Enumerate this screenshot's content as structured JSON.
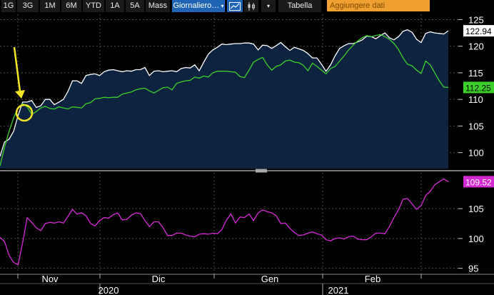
{
  "toolbar": {
    "range_buttons": [
      "1G",
      "3G",
      "1M",
      "6M",
      "YTD",
      "1A",
      "5A",
      "Mass"
    ],
    "period_select": "Giornaliero",
    "chart_type_icons": [
      "line-chart-icon",
      "candlestick-icon"
    ],
    "dropdown_icon": "chevron-down-icon",
    "table_button": "Tabella",
    "add_data_placeholder": "Aggiungere dati"
  },
  "colors": {
    "background": "#000000",
    "area_fill": "#0d2340",
    "series_white": "#ffffff",
    "series_green": "#3cd02a",
    "series_magenta": "#d42ad4",
    "grid": "#4a4a4a",
    "annotation": "#f5e625",
    "active_button": "#1f64b4",
    "input_orange": "#f0a030"
  },
  "chart_data": [
    {
      "type": "area",
      "panel": "upper",
      "ylim": [
        97,
        126
      ],
      "y_ticks": [
        100,
        105,
        110,
        115,
        120,
        125
      ],
      "grid": true,
      "series": [
        {
          "color": "white",
          "last_label": "122.94",
          "values": [
            99.3,
            102,
            102.5,
            104,
            107,
            109.5,
            109.5,
            109.8,
            108.5,
            108.8,
            110,
            110,
            109,
            109.5,
            110,
            111.5,
            113.5,
            113.5,
            113,
            114.5,
            114.7,
            114.8,
            114.5,
            115.2,
            115.5,
            115.6,
            115.4,
            115.2,
            115.4,
            115.3,
            115.6,
            115.6,
            116,
            114.5,
            115.3,
            115.4,
            115.2,
            115.3,
            115.4,
            115.2,
            115.8,
            116,
            115.9,
            116.5,
            115.4,
            117,
            118.5,
            119.3,
            119.8,
            120.4,
            120.3,
            120.4,
            120.5,
            120.5,
            120.6,
            120.6,
            120.4,
            119.3,
            120.2,
            120.1,
            119.6,
            120.1,
            120.7,
            119.9,
            119.2,
            119.8,
            119.5,
            119.2,
            118.6,
            117.8,
            117.8,
            116.6,
            115.3,
            116.5,
            118.2,
            119.6,
            120.1,
            120.5,
            120.5,
            120.8,
            121.2,
            121.9,
            121.8,
            121.4,
            122,
            122.5,
            121.6,
            121.2,
            121.8,
            122.8,
            123.1,
            122.6,
            121.3,
            120.7,
            122.4,
            122.7,
            122.5,
            122.4,
            122.3,
            122.9
          ]
        },
        {
          "color": "green",
          "last_label": "112.25",
          "values": [
            97.5,
            101,
            104,
            106.5,
            108.5,
            109.2,
            108.6,
            107.2,
            107.7,
            108.4,
            108.7,
            108.3,
            108.2,
            108.6,
            108.4,
            108.2,
            108.6,
            108.5,
            108.4,
            109.2,
            109.4,
            110.1,
            110.2,
            110.4,
            110.3,
            110.4,
            110.4,
            111,
            111.2,
            111.4,
            111.8,
            112,
            112.1,
            111.6,
            111.2,
            111.7,
            112.2,
            112.3,
            111.8,
            113,
            113.3,
            113.5,
            113.6,
            114.2,
            114,
            114.4,
            114.2,
            115,
            115.3,
            115.3,
            115.3,
            115.2,
            115.1,
            114.3,
            114.1,
            115.5,
            117,
            117.5,
            117.9,
            116.5,
            115.5,
            116.2,
            116.5,
            117.2,
            117.4,
            117,
            116.9,
            116.4,
            115.4,
            116.8,
            116.2,
            115.5,
            114.8,
            115.8,
            116.2,
            117.2,
            118.2,
            119.3,
            120.2,
            121,
            121.6,
            122,
            121.8,
            122,
            122.2,
            121.8,
            121.3,
            120.5,
            119.4,
            117.8,
            116.6,
            116.3,
            115.5,
            114.9,
            117.2,
            116.5,
            115,
            113.5,
            112.3,
            112.25
          ]
        }
      ],
      "annotation": "yellow arrow pointing to circle on green line early November"
    },
    {
      "type": "line",
      "panel": "lower",
      "ylim": [
        94,
        111
      ],
      "y_ticks": [
        95,
        100,
        105
      ],
      "grid": true,
      "series": [
        {
          "color": "magenta",
          "last_label": "109.52",
          "values": [
            100.2,
            99.5,
            97.2,
            96,
            95.6,
            99.3,
            103.5,
            102.7,
            101.8,
            101.3,
            102.5,
            102.7,
            102.6,
            102.8,
            102.6,
            103.7,
            104.9,
            104.1,
            104.3,
            103.8,
            102.5,
            102.1,
            103,
            103.5,
            103.4,
            104,
            104.3,
            103.1,
            103.2,
            103.9,
            104.3,
            104.2,
            103,
            102,
            102.8,
            102.8,
            101.8,
            100.5,
            100.5,
            100.9,
            100.9,
            100.6,
            100.4,
            100.3,
            100.7,
            100.8,
            100.7,
            100.9,
            100.8,
            101.5,
            103.1,
            104.1,
            102.6,
            103.6,
            103.5,
            104.1,
            103,
            104.3,
            104.8,
            104.5,
            104.3,
            103.8,
            102.5,
            102.6,
            101.7,
            101,
            100.5,
            100.6,
            100.9,
            101.1,
            100.8,
            100.6,
            99.8,
            99.6,
            100,
            100.1,
            99.9,
            100.3,
            100.4,
            99.9,
            99.8,
            99.8,
            100.3,
            100.9,
            100.9,
            100.8,
            102,
            103.5,
            104.8,
            106.6,
            106.7,
            105.8,
            104.9,
            105.5,
            107.2,
            107.9,
            109,
            109.5,
            110,
            109.52
          ]
        }
      ]
    }
  ],
  "x_axis": {
    "months": [
      "Nov",
      "Dic",
      "Gen",
      "Feb"
    ],
    "years": [
      "2020",
      "2021"
    ]
  }
}
